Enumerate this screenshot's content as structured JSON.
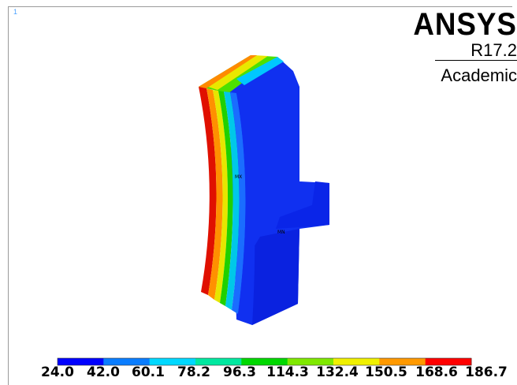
{
  "viewport": {
    "number": "1"
  },
  "brand": {
    "name": "ANSYS",
    "version": "R17.2",
    "edition": "Academic"
  },
  "probes": {
    "mx_label": "MX",
    "mn_label": "MN"
  },
  "legend": {
    "labels": [
      "24.0",
      "42.0",
      "60.1",
      "78.2",
      "96.3",
      "114.3",
      "132.4",
      "150.5",
      "168.6",
      "186.7"
    ],
    "colors": [
      "#0000ff",
      "#0a7dff",
      "#00d8ff",
      "#00e8a0",
      "#00d800",
      "#7fe800",
      "#f0f000",
      "#ff9900",
      "#ff0000"
    ]
  },
  "colors": {
    "background": "#ffffff",
    "body_blue": "#1030f0",
    "shadow_blue": "#0a1fd4"
  }
}
